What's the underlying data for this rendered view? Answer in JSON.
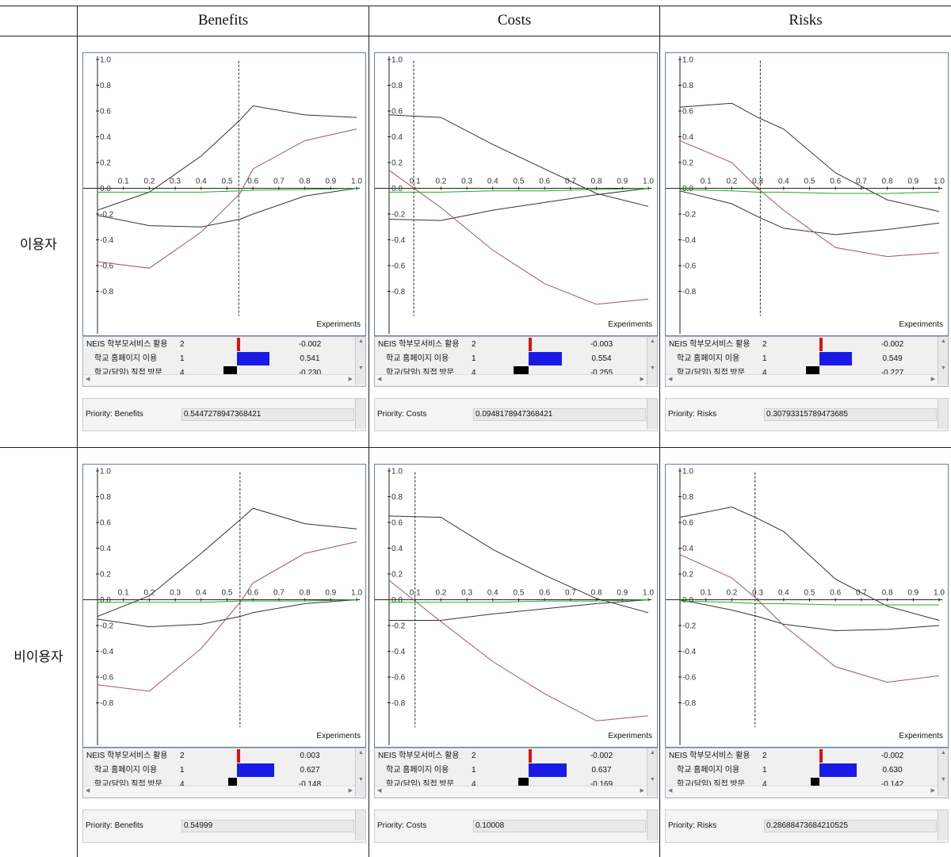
{
  "columns": [
    "Benefits",
    "Costs",
    "Risks"
  ],
  "rows": [
    "이용자",
    "비이용자"
  ],
  "axis": {
    "y_ticks": [
      "1.0",
      "0.8",
      "0.6",
      "0.4",
      "0.2",
      "0.0",
      "-0.2",
      "-0.4",
      "-0.6",
      "-0.8"
    ],
    "x_ticks": [
      "0.1",
      "0.2",
      "0.3",
      "0.4",
      "0.5",
      "0.6",
      "0.7",
      "0.8",
      "0.9",
      "1.0"
    ],
    "x_label": "Experiments"
  },
  "alternatives": [
    {
      "name": "NEIS 학부모서비스 활용",
      "rank": "2",
      "color": "#dd1111"
    },
    {
      "name": "학교 홈페이지 이용",
      "rank": "1",
      "color": "#1a1ae6"
    },
    {
      "name": "학교(담임) 직접 방문",
      "rank": "4",
      "color": "#000000"
    }
  ],
  "extra_color": "#22bb22",
  "panels": [
    {
      "row": "이용자",
      "col": "Benefits",
      "label": "Priority: Benefits",
      "priority": "0.5447278947368421",
      "values": [
        "-0.002",
        "0.541",
        "-0.230"
      ]
    },
    {
      "row": "이용자",
      "col": "Costs",
      "label": "Priority: Costs",
      "priority": "0.0948178947368421",
      "values": [
        "-0.003",
        "0.554",
        "-0.255"
      ]
    },
    {
      "row": "이용자",
      "col": "Risks",
      "label": "Priority: Risks",
      "priority": "0.30793315789473685",
      "values": [
        "-0.002",
        "0.549",
        "-0.227"
      ]
    },
    {
      "row": "비이용자",
      "col": "Benefits",
      "label": "Priority: Benefits",
      "priority": "0.54999",
      "values": [
        "0.003",
        "0.627",
        "-0.148"
      ]
    },
    {
      "row": "비이용자",
      "col": "Costs",
      "label": "Priority: Costs",
      "priority": "0.10008",
      "values": [
        "-0.002",
        "0.637",
        "-0.169"
      ]
    },
    {
      "row": "비이용자",
      "col": "Risks",
      "label": "Priority: Risks",
      "priority": "0.28688473684210525",
      "values": [
        "-0.002",
        "0.630",
        "-0.142"
      ]
    }
  ],
  "chart_data": [
    {
      "type": "line",
      "ylim": [
        -1,
        1
      ],
      "xlim": [
        0,
        1
      ],
      "marker_x": 0.545,
      "x": [
        0,
        0.2,
        0.4,
        0.55,
        0.6,
        0.8,
        1.0
      ],
      "series": [
        {
          "color": "#333333",
          "values": [
            -0.17,
            -0.03,
            0.25,
            0.53,
            0.64,
            0.57,
            0.55
          ]
        },
        {
          "color": "#333333",
          "values": [
            -0.21,
            -0.29,
            -0.3,
            -0.24,
            -0.2,
            -0.06,
            0.0
          ]
        },
        {
          "color": "#a05560",
          "values": [
            -0.57,
            -0.62,
            -0.34,
            -0.04,
            0.15,
            0.37,
            0.46
          ]
        },
        {
          "color": "#22aa22",
          "values": [
            -0.03,
            -0.03,
            -0.03,
            -0.02,
            -0.015,
            -0.01,
            0.0
          ]
        }
      ]
    },
    {
      "type": "line",
      "ylim": [
        -1,
        1
      ],
      "xlim": [
        0,
        1
      ],
      "marker_x": 0.095,
      "x": [
        0,
        0.2,
        0.4,
        0.6,
        0.8,
        1.0
      ],
      "series": [
        {
          "color": "#333333",
          "values": [
            0.57,
            0.55,
            0.34,
            0.15,
            -0.04,
            -0.14
          ]
        },
        {
          "color": "#333333",
          "values": [
            -0.24,
            -0.25,
            -0.17,
            -0.11,
            -0.05,
            0.0
          ]
        },
        {
          "color": "#a05560",
          "values": [
            0.14,
            -0.15,
            -0.48,
            -0.74,
            -0.9,
            -0.86
          ]
        },
        {
          "color": "#22aa22",
          "values": [
            -0.03,
            -0.03,
            -0.02,
            -0.02,
            -0.01,
            0.0
          ]
        }
      ]
    },
    {
      "type": "line",
      "ylim": [
        -1,
        1
      ],
      "xlim": [
        0,
        1
      ],
      "marker_x": 0.31,
      "x": [
        0,
        0.2,
        0.3,
        0.4,
        0.6,
        0.8,
        1.0
      ],
      "series": [
        {
          "color": "#333333",
          "values": [
            0.63,
            0.66,
            0.55,
            0.46,
            0.12,
            -0.09,
            -0.18
          ]
        },
        {
          "color": "#333333",
          "values": [
            -0.02,
            -0.12,
            -0.22,
            -0.31,
            -0.36,
            -0.32,
            -0.27
          ]
        },
        {
          "color": "#a05560",
          "values": [
            0.37,
            0.2,
            0.0,
            -0.17,
            -0.46,
            -0.53,
            -0.5
          ]
        },
        {
          "color": "#22aa22",
          "values": [
            -0.01,
            -0.02,
            -0.03,
            -0.03,
            -0.04,
            -0.04,
            -0.03
          ]
        }
      ]
    },
    {
      "type": "line",
      "ylim": [
        -1,
        1
      ],
      "xlim": [
        0,
        1
      ],
      "marker_x": 0.55,
      "x": [
        0,
        0.2,
        0.4,
        0.55,
        0.6,
        0.8,
        1.0
      ],
      "series": [
        {
          "color": "#333333",
          "values": [
            -0.13,
            0.03,
            0.36,
            0.62,
            0.71,
            0.59,
            0.55
          ]
        },
        {
          "color": "#333333",
          "values": [
            -0.15,
            -0.21,
            -0.19,
            -0.13,
            -0.1,
            -0.03,
            0.0
          ]
        },
        {
          "color": "#a05560",
          "values": [
            -0.66,
            -0.71,
            -0.38,
            -0.02,
            0.13,
            0.36,
            0.45
          ]
        },
        {
          "color": "#22aa22",
          "values": [
            -0.02,
            -0.02,
            -0.02,
            -0.01,
            -0.01,
            -0.01,
            0.0
          ]
        }
      ]
    },
    {
      "type": "line",
      "ylim": [
        -1,
        1
      ],
      "xlim": [
        0,
        1
      ],
      "marker_x": 0.1,
      "x": [
        0,
        0.2,
        0.4,
        0.6,
        0.8,
        1.0
      ],
      "series": [
        {
          "color": "#333333",
          "values": [
            0.65,
            0.64,
            0.39,
            0.19,
            0.01,
            -0.1
          ]
        },
        {
          "color": "#333333",
          "values": [
            -0.16,
            -0.16,
            -0.11,
            -0.07,
            -0.03,
            0.0
          ]
        },
        {
          "color": "#a05560",
          "values": [
            0.15,
            -0.17,
            -0.48,
            -0.73,
            -0.94,
            -0.9
          ]
        },
        {
          "color": "#22aa22",
          "values": [
            -0.02,
            -0.02,
            -0.02,
            -0.01,
            -0.01,
            0.0
          ]
        }
      ]
    },
    {
      "type": "line",
      "ylim": [
        -1,
        1
      ],
      "xlim": [
        0,
        1
      ],
      "marker_x": 0.29,
      "x": [
        0,
        0.2,
        0.3,
        0.4,
        0.6,
        0.8,
        1.0
      ],
      "series": [
        {
          "color": "#333333",
          "values": [
            0.64,
            0.72,
            0.63,
            0.53,
            0.16,
            -0.05,
            -0.16
          ]
        },
        {
          "color": "#333333",
          "values": [
            0.0,
            -0.08,
            -0.13,
            -0.19,
            -0.24,
            -0.23,
            -0.2
          ]
        },
        {
          "color": "#a05560",
          "values": [
            0.35,
            0.17,
            0.0,
            -0.2,
            -0.52,
            -0.64,
            -0.59
          ]
        },
        {
          "color": "#22aa22",
          "values": [
            -0.01,
            -0.02,
            -0.03,
            -0.03,
            -0.04,
            -0.04,
            -0.04
          ]
        }
      ]
    }
  ]
}
